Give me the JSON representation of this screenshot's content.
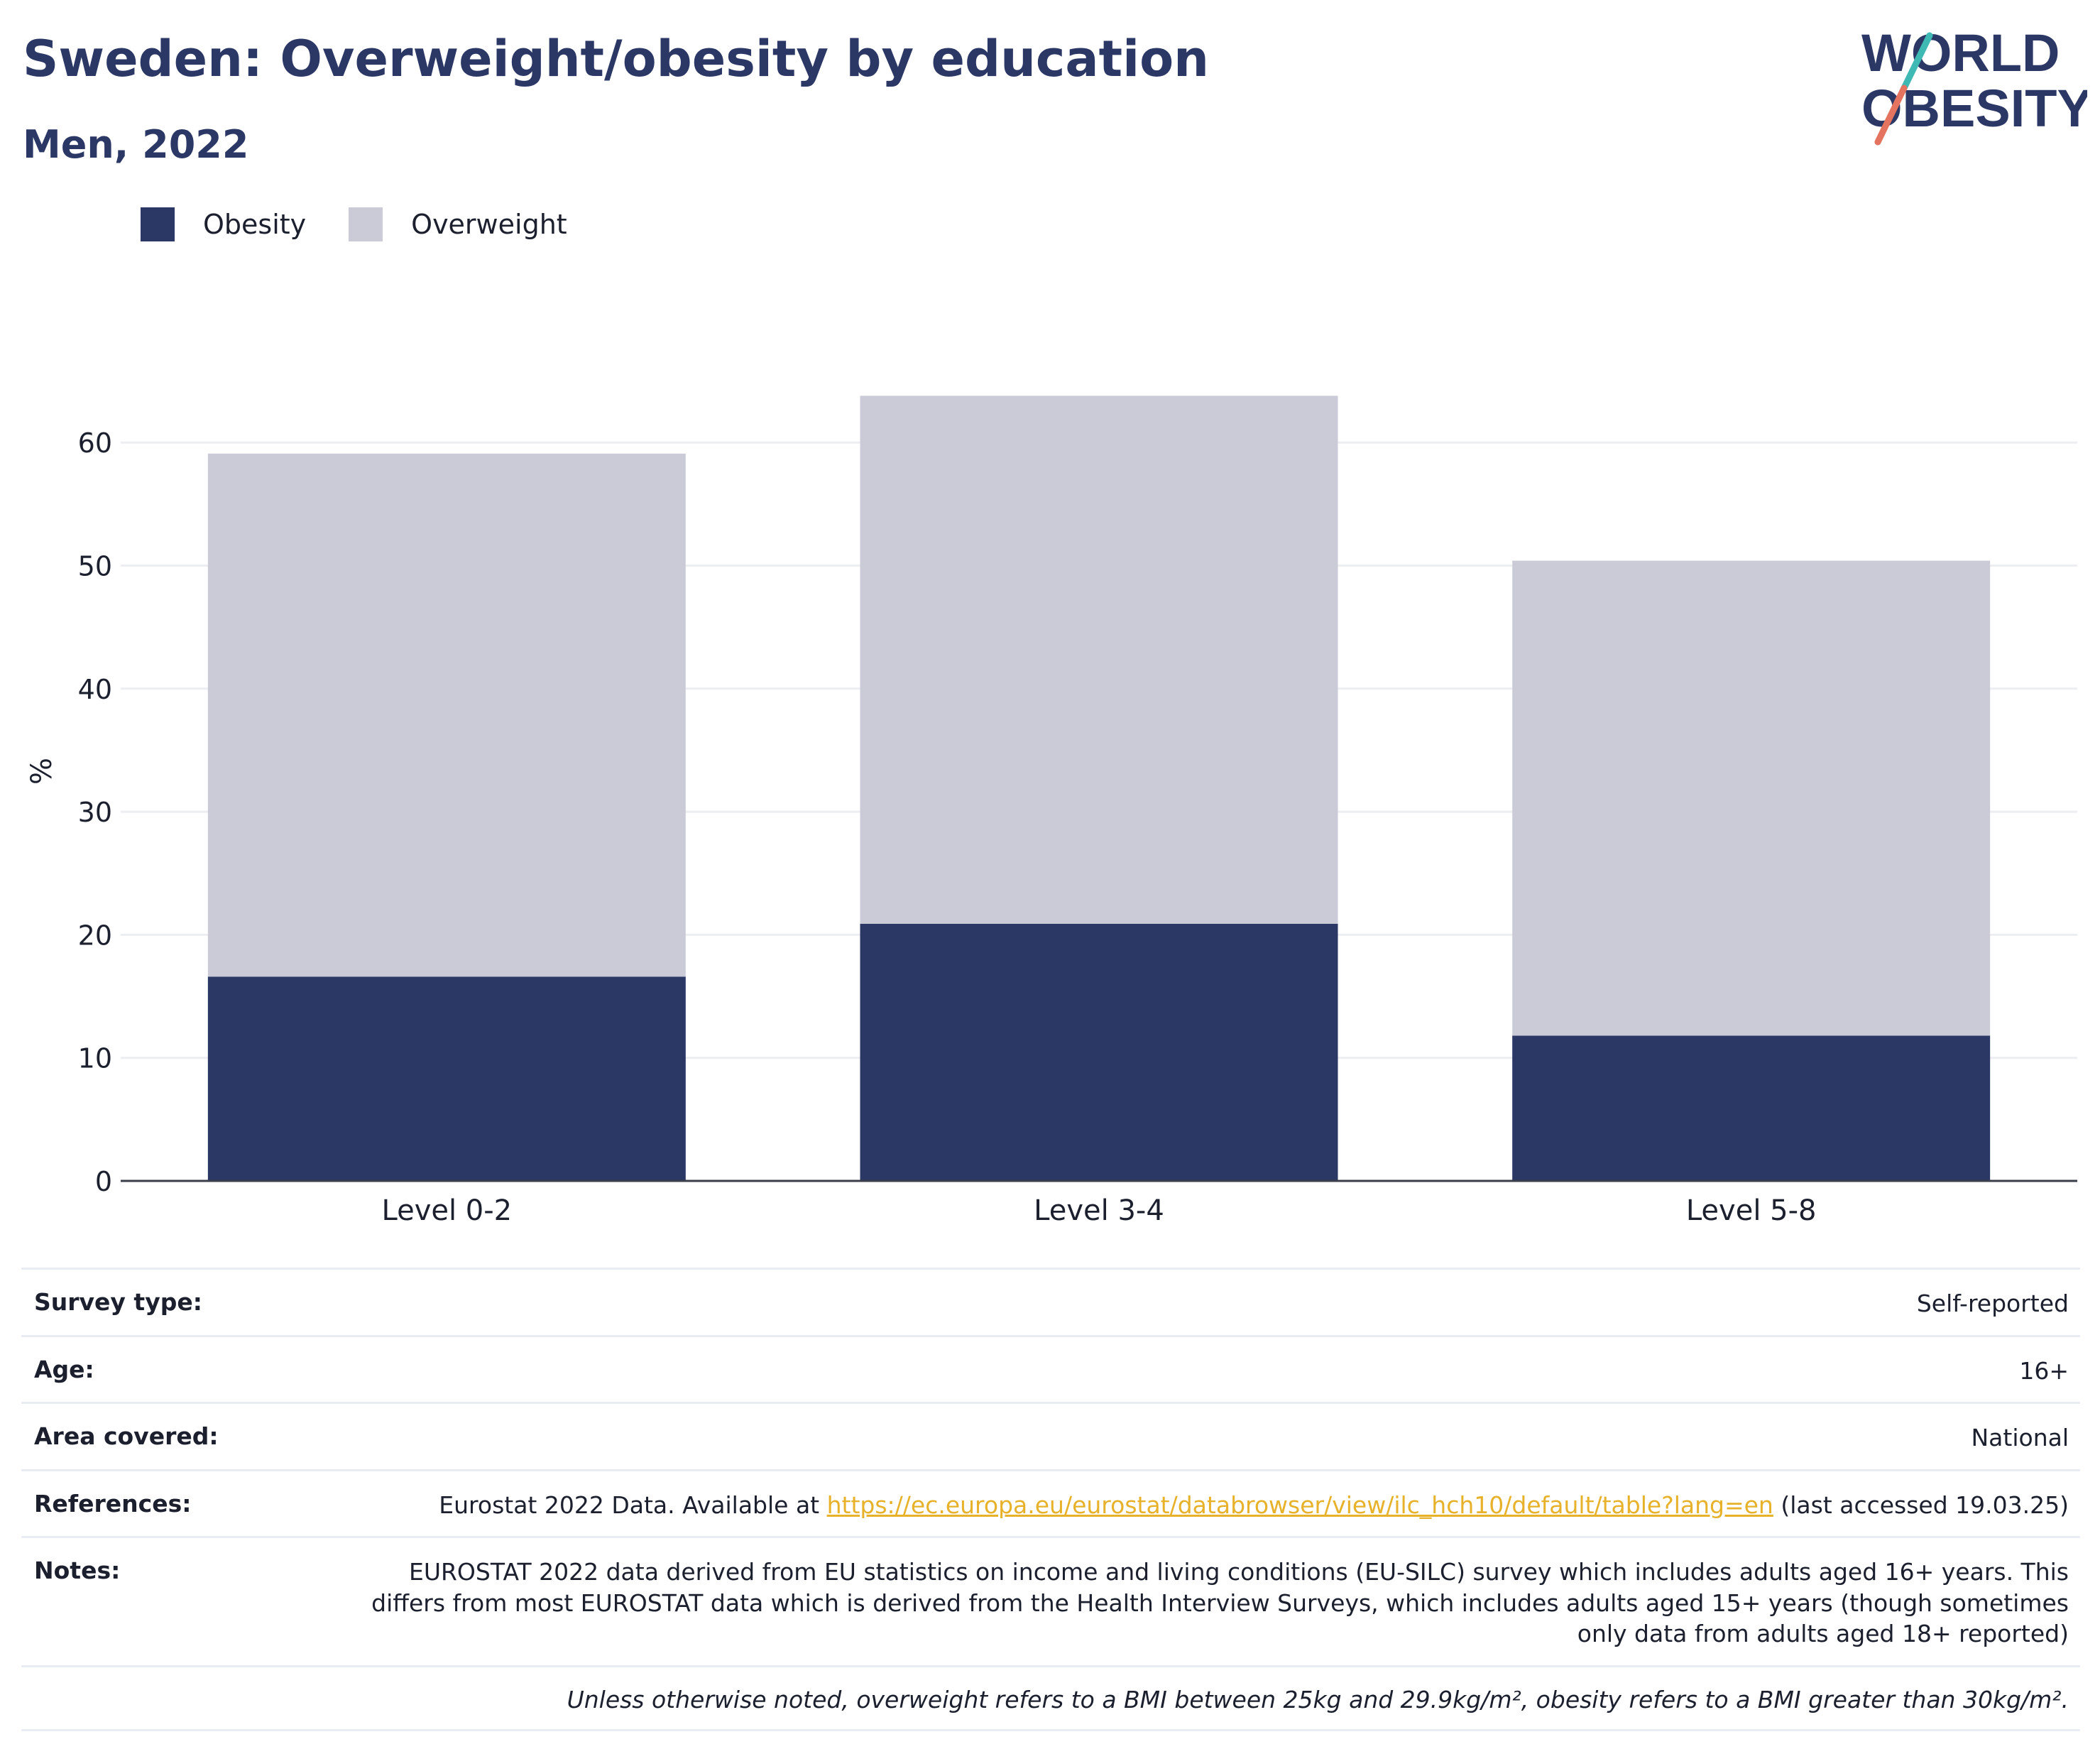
{
  "header": {
    "title": "Sweden: Overweight/obesity by education",
    "subtitle": "Men, 2022",
    "logo_line1": "WORLD",
    "logo_line2": "OBESITY"
  },
  "colors": {
    "obesity": "#2b3765",
    "overweight": "#cacbd7",
    "title": "#2b3765",
    "link": "#e7b22a",
    "logo_teal": "#3fb9b4",
    "logo_coral": "#e4735f"
  },
  "chart_data": {
    "type": "bar",
    "stacked": true,
    "categories": [
      "Level 0-2",
      "Level 3-4",
      "Level 5-8"
    ],
    "series": [
      {
        "name": "Obesity",
        "values": [
          16.6,
          20.9,
          11.8
        ]
      },
      {
        "name": "Overweight",
        "values": [
          42.5,
          42.9,
          38.6
        ]
      }
    ],
    "ylabel": "%",
    "ylim": [
      0,
      65
    ],
    "yticks": [
      0,
      10,
      20,
      30,
      40,
      50,
      60
    ],
    "grid": true,
    "legend": "top-left"
  },
  "meta": {
    "survey_label": "Survey type:",
    "survey_value": "Self-reported",
    "age_label": "Age:",
    "age_value": "16+",
    "area_label": "Area covered:",
    "area_value": "National",
    "references_label": "References:",
    "references_prefix": "Eurostat 2022 Data. Available at ",
    "references_link": "https://ec.europa.eu/eurostat/databrowser/view/ilc_hch10/default/table?lang=en",
    "references_suffix": " (last accessed 19.03.25)",
    "notes_label": "Notes:",
    "notes_value": "EUROSTAT 2022 data derived from EU statistics on income and living conditions (EU-SILC) survey which includes adults aged 16+ years. This differs from most EUROSTAT data which is derived from the Health Interview Surveys, which includes adults aged 15+ years (though sometimes only data from adults aged 18+ reported)",
    "footnote": "Unless otherwise noted, overweight refers to a BMI between 25kg and 29.9kg/m², obesity refers to a BMI greater than 30kg/m²."
  }
}
